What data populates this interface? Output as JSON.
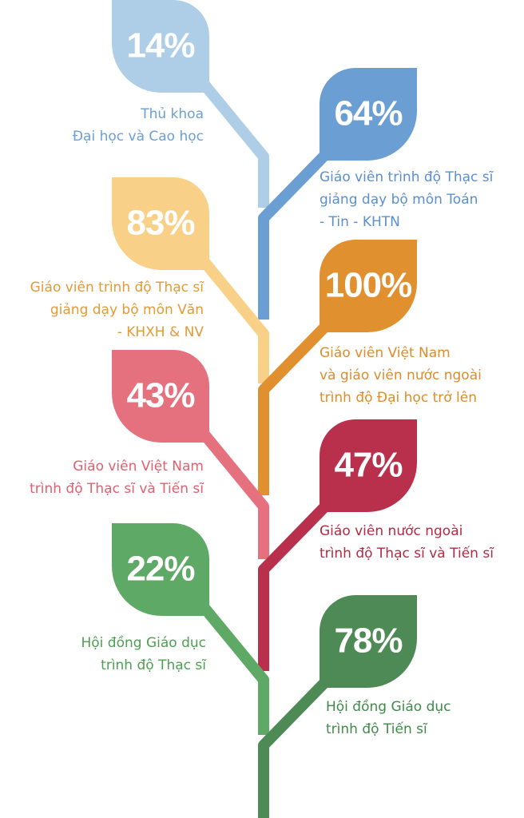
{
  "items": [
    {
      "value": "14%",
      "lines": [
        "Thủ khoa",
        "Đại học và Cao học"
      ],
      "color": "#aecde6",
      "text_color": "#6a9fd3"
    },
    {
      "value": "64%",
      "lines": [
        "Giáo viên trình độ Thạc sĩ",
        "giảng dạy bộ môn Toán",
        "- Tin - KHTN"
      ],
      "color": "#6b9fd4",
      "text_color": "#5a8fcf"
    },
    {
      "value": "83%",
      "lines": [
        "Giáo viên trình độ Thạc sĩ",
        "giảng dạy bộ môn Văn",
        "- KHXH & NV"
      ],
      "color": "#f9d087",
      "text_color": "#e39a35"
    },
    {
      "value": "100%",
      "lines": [
        "Giáo viên Việt Nam",
        "và giáo viên nước ngoài",
        "trình độ Đại học trở lên"
      ],
      "color": "#e0902f",
      "text_color": "#de8c2b"
    },
    {
      "value": "43%",
      "lines": [
        "Giáo viên Việt Nam",
        "trình độ Thạc sĩ và Tiến sĩ"
      ],
      "color": "#e5717e",
      "text_color": "#e0606f"
    },
    {
      "value": "47%",
      "lines": [
        "Giáo viên nước ngoài",
        "trình độ Thạc sĩ và Tiến sĩ"
      ],
      "color": "#b8304b",
      "text_color": "#b22a45"
    },
    {
      "value": "22%",
      "lines": [
        "Hội đồng Giáo dục",
        "trình độ Thạc sĩ"
      ],
      "color": "#5fa966",
      "text_color": "#4d9f52"
    },
    {
      "value": "78%",
      "lines": [
        "Hội đồng Giáo dục",
        "trình độ Tiến sĩ"
      ],
      "color": "#4d8a55",
      "text_color": "#3f8a4a"
    }
  ]
}
